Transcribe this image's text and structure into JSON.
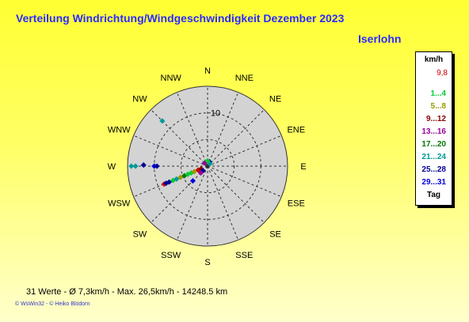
{
  "header": {
    "title": "Verteilung Windrichtung/Windgeschwindigkeit  Dezember 2023",
    "station": "Iserlohn"
  },
  "legend": {
    "unit": "km/h",
    "max_value": "9,8",
    "entries": [
      {
        "label": "1...4",
        "color": "#00cc33"
      },
      {
        "label": "5...8",
        "color": "#999900"
      },
      {
        "label": "9...12",
        "color": "#880000"
      },
      {
        "label": "13...16",
        "color": "#990099"
      },
      {
        "label": "17...20",
        "color": "#007700"
      },
      {
        "label": "21...24",
        "color": "#009999"
      },
      {
        "label": "25...28",
        "color": "#000099"
      },
      {
        "label": "29...31",
        "color": "#0000dd"
      }
    ],
    "day_label": "Tag"
  },
  "footer": {
    "stats": "31 Werte   -   Ø 7,3km/h   -   Max. 26,5km/h   -   14248.5 km",
    "credits": "© WsWin32  -  © Heiko Blödorn"
  },
  "chart_data": {
    "type": "scatter",
    "projection": "polar",
    "title": "Verteilung Windrichtung/Windgeschwindigkeit  Dezember 2023",
    "directions": [
      "N",
      "NNE",
      "NE",
      "ENE",
      "E",
      "ESE",
      "SE",
      "SSE",
      "S",
      "SSW",
      "SW",
      "WSW",
      "W",
      "WNW",
      "NW",
      "NNW"
    ],
    "radial_max": 15,
    "radial_tick_labels": [
      {
        "value": 10,
        "label": "10"
      }
    ],
    "radial_rings": [
      5,
      10,
      15
    ],
    "colors": {
      "face": "#d3d3d3",
      "grid": "#333333",
      "label": "#000000",
      "series": [
        "#00cc33",
        "#999900",
        "#880000",
        "#990099",
        "#007700",
        "#009999",
        "#000099",
        "#0000dd"
      ]
    },
    "points": [
      {
        "deg": 270,
        "r": 14.3,
        "color": "#009999"
      },
      {
        "deg": 270,
        "r": 13.5,
        "color": "#009999"
      },
      {
        "deg": 271,
        "r": 12.0,
        "color": "#000099"
      },
      {
        "deg": 270,
        "r": 10.0,
        "color": "#0000dd"
      },
      {
        "deg": 270,
        "r": 9.5,
        "color": "#000099"
      },
      {
        "deg": 315,
        "r": 12.0,
        "color": "#009999"
      },
      {
        "deg": 247.5,
        "r": 8.8,
        "color": "#cc0000"
      },
      {
        "deg": 247.5,
        "r": 8.4,
        "color": "#000099"
      },
      {
        "deg": 247.5,
        "r": 7.8,
        "color": "#000099"
      },
      {
        "deg": 247.5,
        "r": 7.0,
        "color": "#00cc33"
      },
      {
        "deg": 247.5,
        "r": 6.3,
        "color": "#009999"
      },
      {
        "deg": 247.5,
        "r": 5.5,
        "color": "#999900"
      },
      {
        "deg": 247.5,
        "r": 4.7,
        "color": "#007700"
      },
      {
        "deg": 247.5,
        "r": 4.0,
        "color": "#00cc33"
      },
      {
        "deg": 247.5,
        "r": 3.3,
        "color": "#00cc33"
      },
      {
        "deg": 247.5,
        "r": 2.7,
        "color": "#999900"
      },
      {
        "deg": 247.5,
        "r": 1.9,
        "color": "#cc0000"
      },
      {
        "deg": 225,
        "r": 3.9,
        "color": "#0000dd"
      },
      {
        "deg": 247.5,
        "r": 1.3,
        "color": "#880000"
      },
      {
        "deg": 225,
        "r": 1.2,
        "color": "#000099"
      },
      {
        "deg": 315,
        "r": 0.8,
        "color": "#990099"
      },
      {
        "deg": 22.5,
        "r": 0.9,
        "color": "#000099"
      },
      {
        "deg": 45,
        "r": 0.6,
        "color": "#009999"
      },
      {
        "deg": 225,
        "r": 1.8,
        "color": "#990099"
      },
      {
        "deg": 0,
        "r": 1.0,
        "color": "#00cc33"
      }
    ]
  }
}
